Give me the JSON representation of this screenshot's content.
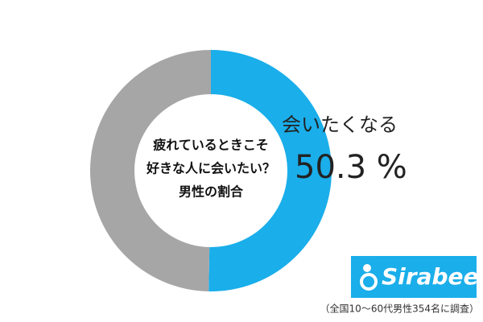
{
  "chart_data": {
    "type": "donut",
    "center_text": [
      "疲れているときこそ",
      "好きな人に会いたい？",
      "男性の割合"
    ],
    "categories": [
      "会いたくなる",
      null
    ],
    "values": [
      50.3,
      49.7
    ],
    "value_labels": [
      "50.3 %",
      null
    ],
    "colors": [
      "#1aaeea",
      "#a6a6a6"
    ],
    "logo": "Sirabee",
    "note": "（全国10～60代男性354名に調査）"
  }
}
